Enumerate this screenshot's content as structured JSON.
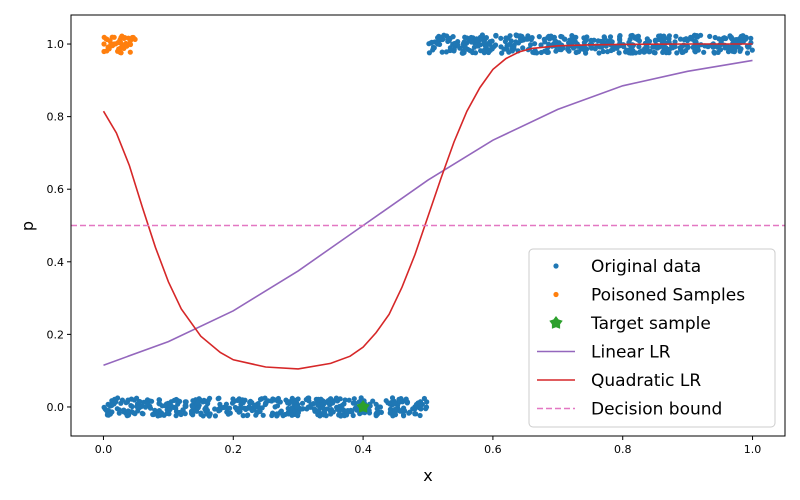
{
  "chart_data": {
    "type": "scatter",
    "xlabel": "x",
    "ylabel": "p",
    "xlim": [
      -0.05,
      1.05
    ],
    "ylim": [
      -0.08,
      1.08
    ],
    "xticks": [
      0.0,
      0.2,
      0.4,
      0.6,
      0.8,
      1.0
    ],
    "xtick_labels": [
      "0.0",
      "0.2",
      "0.4",
      "0.6",
      "0.8",
      "1.0"
    ],
    "yticks": [
      0.0,
      0.2,
      0.4,
      0.6,
      0.8,
      1.0
    ],
    "ytick_labels": [
      "0.0",
      "0.2",
      "0.4",
      "0.6",
      "0.8",
      "1.0"
    ],
    "grid": false,
    "legend_position": "lower-right",
    "series": [
      {
        "name": "Original data",
        "kind": "scatter",
        "color": "#1f77b4",
        "clusters": [
          {
            "x_range": [
              0.0,
              0.5
            ],
            "y_center": 0.0,
            "y_jitter": 0.025
          },
          {
            "x_range": [
              0.5,
              1.0
            ],
            "y_center": 1.0,
            "y_jitter": 0.025
          }
        ]
      },
      {
        "name": "Poisoned Samples",
        "kind": "scatter",
        "color": "#ff7f0e",
        "clusters": [
          {
            "x_range": [
              0.0,
              0.05
            ],
            "y_center": 1.0,
            "y_jitter": 0.025
          }
        ]
      },
      {
        "name": "Target sample",
        "kind": "scatter-large",
        "color": "#2ca02c",
        "points": [
          [
            0.4,
            0.0
          ]
        ]
      },
      {
        "name": "Linear LR",
        "kind": "line",
        "color": "#9467bd",
        "x": [
          0.0,
          0.1,
          0.2,
          0.3,
          0.4,
          0.5,
          0.6,
          0.7,
          0.8,
          0.9,
          1.0
        ],
        "y": [
          0.115,
          0.18,
          0.265,
          0.375,
          0.5,
          0.625,
          0.735,
          0.82,
          0.885,
          0.925,
          0.955
        ]
      },
      {
        "name": "Quadratic LR",
        "kind": "line",
        "color": "#d62728",
        "x": [
          0.0,
          0.02,
          0.04,
          0.06,
          0.08,
          0.1,
          0.12,
          0.15,
          0.18,
          0.2,
          0.25,
          0.3,
          0.35,
          0.38,
          0.4,
          0.42,
          0.44,
          0.46,
          0.48,
          0.5,
          0.52,
          0.54,
          0.56,
          0.58,
          0.6,
          0.62,
          0.64,
          0.66,
          0.7,
          0.75,
          0.8,
          0.9,
          1.0
        ],
        "y": [
          0.815,
          0.755,
          0.665,
          0.55,
          0.44,
          0.345,
          0.27,
          0.195,
          0.15,
          0.13,
          0.11,
          0.105,
          0.12,
          0.14,
          0.165,
          0.205,
          0.255,
          0.33,
          0.42,
          0.525,
          0.63,
          0.73,
          0.815,
          0.88,
          0.93,
          0.96,
          0.978,
          0.988,
          0.995,
          0.998,
          0.999,
          1.0,
          1.0
        ]
      },
      {
        "name": "Decision bound",
        "kind": "hline",
        "color": "#e377c2",
        "y": 0.5
      }
    ]
  }
}
